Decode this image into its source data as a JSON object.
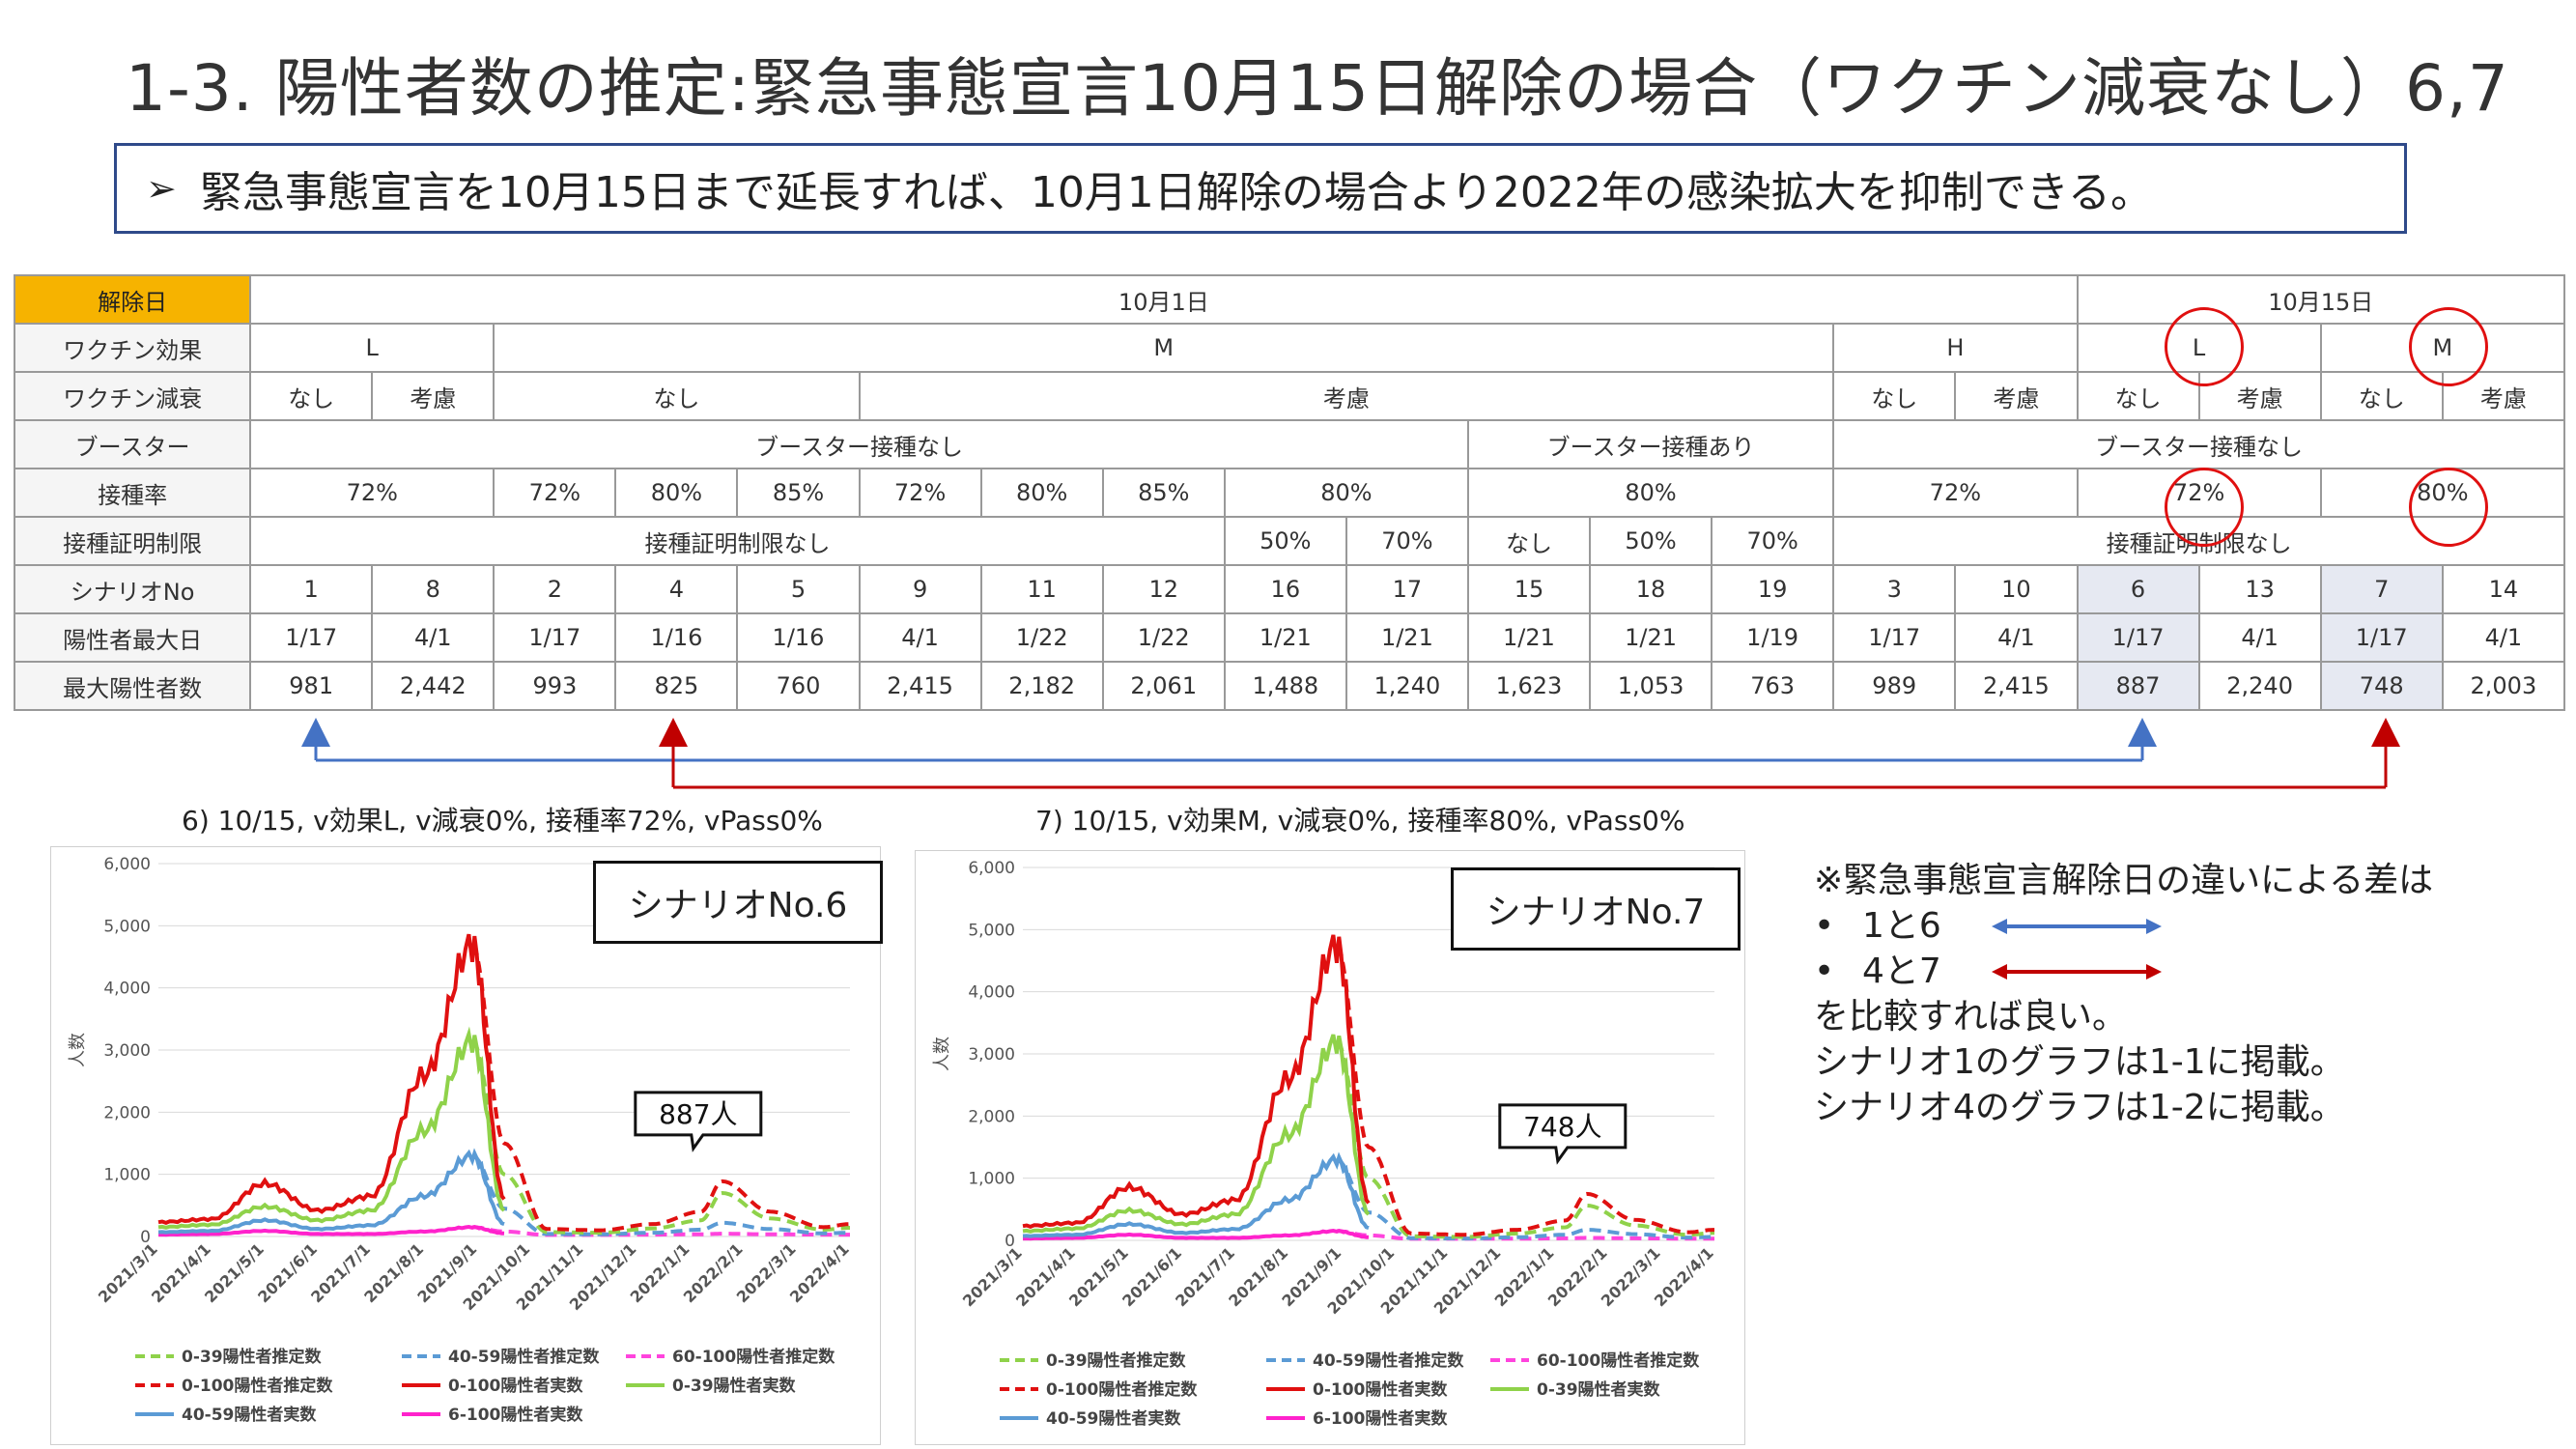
{
  "title": "1-3. 陽性者数の推定:緊急事態宣言10月15日解除の場合（ワクチン減衰なし）6,7",
  "subtitle": "緊急事態宣言を10月15日まで延長すれば、10月1日解除の場合より2022年の感染拡大を抑制できる。",
  "table": {
    "headers": {
      "release": "解除日",
      "efficacy": "ワクチン効果",
      "waning": "ワクチン減衰",
      "booster": "ブースター",
      "rate": "接種率",
      "passport": "接種証明制限",
      "scenario": "シナリオNo",
      "peak_day": "陽性者最大日",
      "peak": "最大陽性者数"
    },
    "release": [
      "10月1日",
      "10月15日"
    ],
    "efficacy": [
      "L",
      "M",
      "H",
      "L",
      "M"
    ],
    "waning": [
      "なし",
      "考慮",
      "なし",
      "考慮",
      "なし",
      "考慮",
      "なし",
      "考慮",
      "なし",
      "考慮"
    ],
    "booster": [
      "ブースター接種なし",
      "ブースター接種あり",
      "ブースター接種なし"
    ],
    "rate": [
      "72%",
      "72%",
      "80%",
      "85%",
      "72%",
      "80%",
      "85%",
      "80%",
      "80%",
      "72%",
      "72%",
      "80%"
    ],
    "passport": [
      "接種証明制限なし",
      "50%",
      "70%",
      "なし",
      "50%",
      "70%",
      "接種証明制限なし"
    ],
    "scenario": [
      "1",
      "8",
      "2",
      "4",
      "5",
      "9",
      "11",
      "12",
      "16",
      "17",
      "15",
      "18",
      "19",
      "3",
      "10",
      "6",
      "13",
      "7",
      "14"
    ],
    "peak_day": [
      "1/17",
      "4/1",
      "1/17",
      "1/16",
      "1/16",
      "4/1",
      "1/22",
      "1/22",
      "1/21",
      "1/21",
      "1/21",
      "1/21",
      "1/19",
      "1/17",
      "4/1",
      "1/17",
      "4/1",
      "1/17",
      "4/1"
    ],
    "peak": [
      "981",
      "2,442",
      "993",
      "825",
      "760",
      "2,415",
      "2,182",
      "2,061",
      "1,488",
      "1,240",
      "1,623",
      "1,053",
      "763",
      "989",
      "2,415",
      "887",
      "2,240",
      "748",
      "2,003"
    ]
  },
  "note": {
    "line1": "※緊急事態宣言解除日の違いによる差は",
    "bullet": "•",
    "item1": "1と6",
    "item2": "4と7",
    "line2": "を比較すれば良い。",
    "line3": "シナリオ1のグラフは1-1に掲載。",
    "line4": "シナリオ4のグラフは1-2に掲載。"
  },
  "colors": {
    "accent_orange": "#f6b300",
    "circle_red": "#e01010",
    "arrow_blue": "#4472c4",
    "arrow_red": "#c00000",
    "shade": "#e6e9f2"
  },
  "chart_data": [
    {
      "type": "line",
      "caption": "6) 10/15, v効果L, v減衰0%, 接種率72%, vPass0%",
      "scenario_label": "シナリオNo.6",
      "callout": "887人",
      "ylabel": "人数",
      "ylim": [
        0,
        6000
      ],
      "yticks": [
        "6,000",
        "5,000",
        "4,000",
        "3,000",
        "2,000",
        "1,000",
        "0"
      ],
      "x_ticks": [
        "2021/3/1",
        "2021/4/1",
        "2021/5/1",
        "2021/6/1",
        "2021/7/1",
        "2021/8/1",
        "2021/9/1",
        "2021/10/1",
        "2021/11/1",
        "2021/12/1",
        "2022/1/1",
        "2022/2/1",
        "2022/3/1",
        "2022/4/1"
      ],
      "x_months": [
        0,
        1,
        2,
        3,
        4,
        5,
        6,
        7,
        8,
        9,
        10,
        11,
        12,
        13
      ],
      "actual_total": [
        230,
        280,
        850,
        420,
        650,
        2600,
        4700,
        600
      ],
      "actual_0_39": [
        150,
        190,
        480,
        260,
        420,
        1700,
        3150,
        420
      ],
      "actual_40_59": [
        70,
        90,
        260,
        120,
        180,
        650,
        1300,
        200
      ],
      "actual_60_100": [
        30,
        40,
        90,
        40,
        40,
        80,
        150,
        50
      ],
      "est_total": [
        4700,
        1500,
        120,
        100,
        200,
        400,
        887,
        400,
        150,
        200
      ],
      "est_0_39": [
        3150,
        1000,
        70,
        60,
        130,
        260,
        700,
        290,
        110,
        140
      ],
      "est_40_59": [
        1300,
        450,
        40,
        35,
        60,
        110,
        220,
        120,
        50,
        60
      ],
      "est_60_100": [
        150,
        80,
        25,
        25,
        30,
        35,
        45,
        35,
        30,
        30
      ],
      "legend": [
        "0-39陽性者推定数",
        "40-59陽性者推定数",
        "60-100陽性者推定数",
        "0-100陽性者推定数",
        "0-100陽性者実数",
        "0-39陽性者実数",
        "40-59陽性者実数",
        "6-100陽性者実数"
      ]
    },
    {
      "type": "line",
      "caption": "7) 10/15, v効果M, v減衰0%, 接種率80%, vPass0%",
      "scenario_label": "シナリオNo.7",
      "callout": "748人",
      "ylabel": "人数",
      "ylim": [
        0,
        6000
      ],
      "yticks": [
        "6,000",
        "5,000",
        "4,000",
        "3,000",
        "2,000",
        "1,000",
        "0"
      ],
      "x_ticks": [
        "2021/3/1",
        "2021/4/1",
        "2021/5/1",
        "2021/6/1",
        "2021/7/1",
        "2021/8/1",
        "2021/9/1",
        "2021/10/1",
        "2021/11/1",
        "2021/12/1",
        "2022/1/1",
        "2022/2/1",
        "2022/3/1",
        "2022/4/1"
      ],
      "x_months": [
        0,
        1,
        2,
        3,
        4,
        5,
        6,
        7,
        8,
        9,
        10,
        11,
        12,
        13
      ],
      "actual_total": [
        230,
        280,
        850,
        420,
        650,
        2600,
        4750,
        600
      ],
      "actual_0_39": [
        150,
        190,
        480,
        260,
        420,
        1700,
        3200,
        420
      ],
      "actual_40_59": [
        70,
        90,
        260,
        120,
        180,
        650,
        1300,
        200
      ],
      "actual_60_100": [
        30,
        40,
        90,
        40,
        40,
        80,
        150,
        50
      ],
      "est_total": [
        4750,
        1500,
        110,
        90,
        170,
        320,
        748,
        330,
        130,
        170
      ],
      "est_0_39": [
        3200,
        1000,
        65,
        55,
        110,
        210,
        560,
        240,
        90,
        120
      ],
      "est_40_59": [
        1300,
        450,
        35,
        30,
        50,
        90,
        170,
        100,
        45,
        55
      ],
      "est_60_100": [
        150,
        80,
        25,
        25,
        28,
        32,
        40,
        32,
        28,
        28
      ],
      "legend": [
        "0-39陽性者推定数",
        "40-59陽性者推定数",
        "60-100陽性者推定数",
        "0-100陽性者推定数",
        "0-100陽性者実数",
        "0-39陽性者実数",
        "40-59陽性者実数",
        "6-100陽性者実数"
      ]
    }
  ]
}
